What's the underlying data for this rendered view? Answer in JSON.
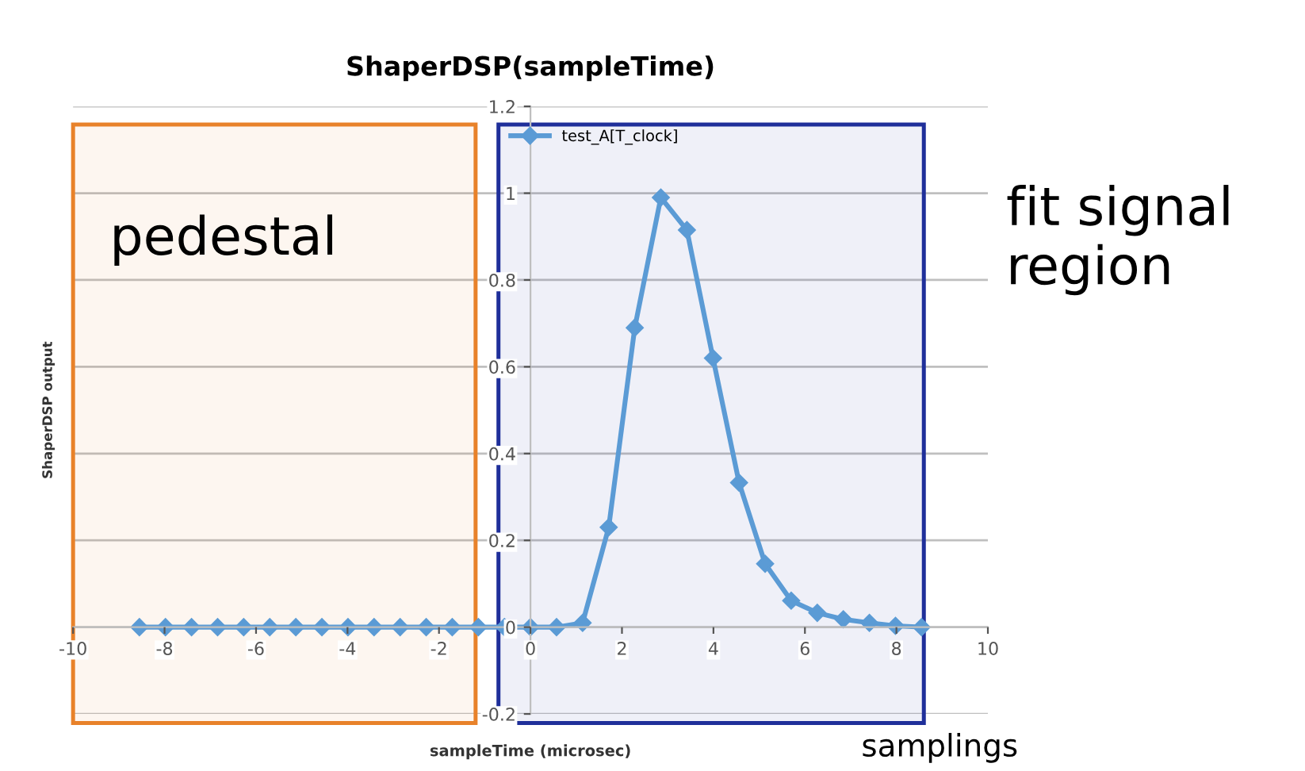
{
  "chart_data": {
    "type": "line",
    "title": "ShaperDSP(sampleTime)",
    "xlabel": "sampleTime (microsec)",
    "ylabel": "ShaperDSP output",
    "x": [
      -8.55,
      -7.98,
      -7.41,
      -6.84,
      -6.27,
      -5.7,
      -5.13,
      -4.56,
      -3.99,
      -3.42,
      -2.85,
      -2.28,
      -1.71,
      -1.14,
      -0.57,
      0,
      0.57,
      1.14,
      1.71,
      2.28,
      2.85,
      3.42,
      3.99,
      4.56,
      5.13,
      5.7,
      6.27,
      6.84,
      7.41,
      7.98,
      8.55
    ],
    "series": [
      {
        "name": "test_A[T_clock]",
        "color": "#5b9bd5",
        "values": [
          0,
          0,
          0,
          0,
          0,
          0,
          0,
          0,
          0,
          0,
          0,
          0,
          0,
          0,
          0,
          0,
          0,
          0.01,
          0.23,
          0.69,
          0.99,
          0.915,
          0.62,
          0.333,
          0.146,
          0.061,
          0.033,
          0.018,
          0.01,
          0.003,
          0
        ]
      }
    ],
    "xlim": [
      -10,
      10
    ],
    "xticks": [
      -10,
      -8,
      -6,
      -4,
      -2,
      0,
      2,
      4,
      6,
      8,
      10
    ],
    "ylim": [
      -0.2,
      1.2
    ],
    "yticks": [
      -0.2,
      0,
      0.2,
      0.4,
      0.6,
      0.8,
      1,
      1.2
    ],
    "grid": "y",
    "legend": "top",
    "marker": "diamond",
    "line_style": "solid",
    "bands": [
      {
        "axis": "x",
        "from": -10,
        "to": -1.2,
        "label": "pedestal",
        "color": "#e8822a"
      },
      {
        "axis": "x",
        "from": -0.7,
        "to": 8.6,
        "label": "fit signal region",
        "color": "#1f2f9a"
      }
    ],
    "annotations": [
      "samplings"
    ]
  }
}
